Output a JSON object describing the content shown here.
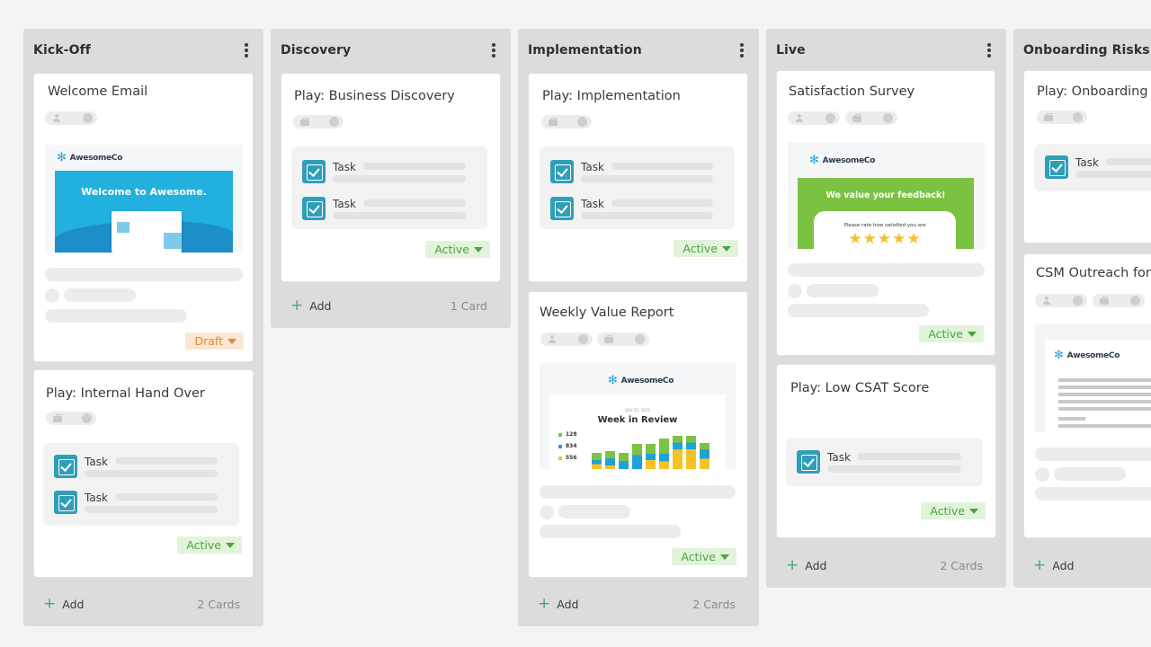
{
  "columns": [
    {
      "title": "Kick-Off",
      "footer": {
        "add": "Add",
        "count": "2 Cards"
      },
      "cards": [
        {
          "title": "Welcome Email",
          "badge": "Draft",
          "thumb": {
            "logo": "AwesomeCo",
            "headline": "Welcome to Awesome."
          }
        },
        {
          "title": "Play: Internal Hand Over",
          "tasks": [
            "Task",
            "Task"
          ],
          "badge": "Active"
        }
      ]
    },
    {
      "title": "Discovery",
      "footer": {
        "add": "Add",
        "count": "1 Card"
      },
      "cards": [
        {
          "title": "Play: Business Discovery",
          "tasks": [
            "Task",
            "Task"
          ],
          "badge": "Active"
        }
      ]
    },
    {
      "title": "Implementation",
      "footer": {
        "add": "Add",
        "count": "2 Cards"
      },
      "cards": [
        {
          "title": "Play: Implementation",
          "tasks": [
            "Task",
            "Task"
          ],
          "badge": "Active"
        },
        {
          "title": "Weekly Value Report",
          "badge": "Active",
          "thumb": {
            "logo": "AwesomeCo",
            "date": "JULY 25, 2021",
            "headline": "Week in Review",
            "legend": [
              "128",
              "834",
              "556"
            ]
          }
        }
      ]
    },
    {
      "title": "Live",
      "footer": {
        "add": "Add",
        "count": "2 Cards"
      },
      "cards": [
        {
          "title": "Satisfaction Survey",
          "badge": "Active",
          "thumb": {
            "logo": "AwesomeCo",
            "headline": "We value your feedback!",
            "subtext": "Please rate how satisfied you are",
            "stars": 5
          }
        },
        {
          "title": "Play: Low CSAT Score",
          "tasks": [
            "Task"
          ],
          "badge": "Active"
        }
      ]
    },
    {
      "title": "Onboarding Risks",
      "footer": {
        "add": "Add",
        "count": ""
      },
      "cards": [
        {
          "title": "Play: Onboarding R",
          "tasks": [
            "Task"
          ]
        },
        {
          "title": "CSM Outreach for",
          "thumb": {
            "logo": "AwesomeCo"
          }
        }
      ]
    }
  ],
  "colors": {
    "accent": "#2f9fb8",
    "active_bg": "#e2f3dc",
    "active_text": "#4aa53c",
    "draft_bg": "#fde7d3",
    "draft_text": "#e0893b",
    "column_bg": "#dcdcdd",
    "plus": "#49a86b"
  },
  "icons": [
    "kebab-menu-icon",
    "person-icon",
    "briefcase-icon",
    "checkbox-icon",
    "caret-down-icon",
    "plus-icon",
    "star-icon"
  ]
}
